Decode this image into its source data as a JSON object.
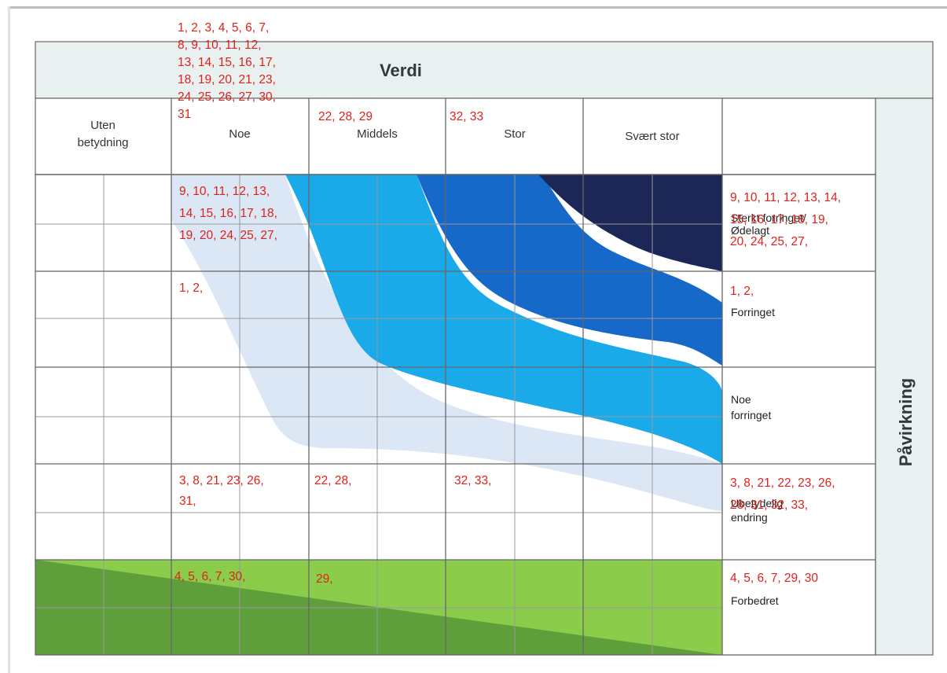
{
  "title": "Verdi",
  "side_title": "Påvirkning",
  "value_columns": [
    {
      "label_lines": [
        "Uten",
        "betydning"
      ]
    },
    {
      "label_lines": [
        "Noe"
      ]
    },
    {
      "label_lines": [
        "Middels"
      ]
    },
    {
      "label_lines": [
        "Stor"
      ]
    },
    {
      "label_lines": [
        "Svært stor"
      ]
    }
  ],
  "header_numbers": {
    "noe": [
      "1, 2, 3, 4, 5, 6, 7,",
      "8, 9, 10, 11, 12,",
      "13, 14, 15, 16, 17,",
      "18, 19, 20, 21, 23,",
      "24, 25, 26, 27, 30,",
      "31"
    ],
    "middels": [
      "22, 28, 29"
    ],
    "stor": [
      "32, 33"
    ]
  },
  "impact_levels": [
    {
      "label_lines": [
        "Sterkt forringet/",
        "Ødelagt"
      ],
      "numbers": [
        "9, 10, 11, 12, 13, 14,",
        "15, 16, 17, 18, 19,",
        "20, 24, 25, 27,"
      ]
    },
    {
      "label_lines": [
        "Forringet"
      ],
      "numbers": [
        "1, 2,"
      ]
    },
    {
      "label_lines": [
        "Noe",
        "forringet"
      ],
      "numbers": []
    },
    {
      "label_lines": [
        "Ubetydelig",
        "endring"
      ],
      "numbers": [
        "3, 8, 21, 22, 23, 26,",
        "28, 31, 32, 33,"
      ]
    },
    {
      "label_lines": [
        "Forbedret"
      ],
      "numbers": [
        "4, 5, 6, 7, 29, 30"
      ]
    }
  ],
  "cell_numbers": {
    "sterkt_noe": [
      "9, 10, 11, 12, 13,",
      "14, 15, 16, 17, 18,",
      "19, 20, 24, 25, 27,"
    ],
    "forringet_noe": [
      "1, 2,"
    ],
    "ubetydelig_noe": [
      "3, 8, 21, 23, 26,",
      "31,"
    ],
    "ubetydelig_middels": [
      "22, 28,"
    ],
    "ubetydelig_stor": [
      "32, 33,"
    ],
    "forbedret_noe": [
      "4, 5, 6, 7, 30,"
    ],
    "forbedret_middels": [
      "29,"
    ]
  },
  "colors": {
    "header_bg": "#e9f0f0",
    "darkest": "#1c2758",
    "dark": "#1668c9",
    "mid": "#1aaaea",
    "light": "#dbe7f4",
    "green_light": "#8bcc4a",
    "green_dark": "#5e9e3b",
    "number_red": "#e0201b"
  }
}
